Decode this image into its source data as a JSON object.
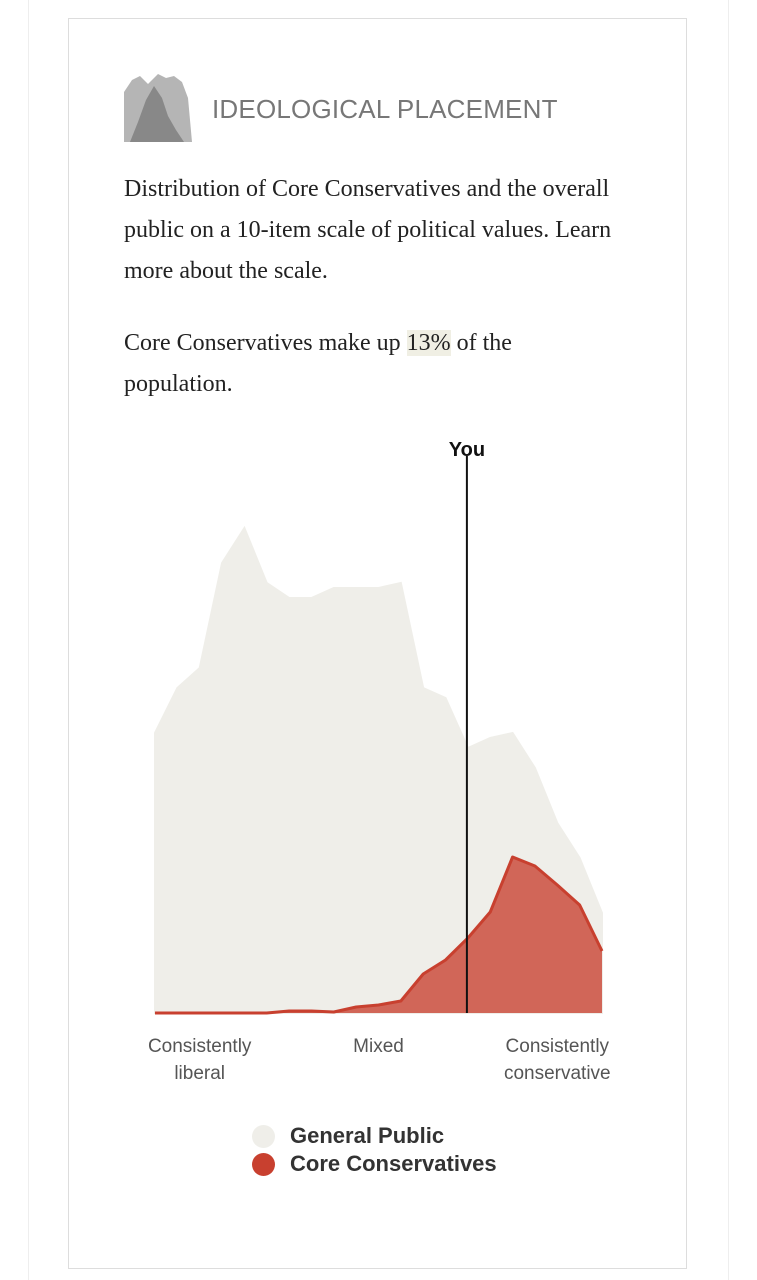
{
  "header": {
    "title": "IDEOLOGICAL PLACEMENT"
  },
  "description": "Distribution of Core Conservatives and the overall public on a 10-item scale of political values. Learn more about the scale.",
  "share": {
    "before": "Core Conservatives make up",
    "value": "13%",
    "after": "of the population."
  },
  "chart_data": {
    "type": "area",
    "categories": [
      null,
      null,
      "Consistently liberal",
      null,
      null,
      null,
      null,
      null,
      null,
      null,
      "Mixed",
      null,
      null,
      null,
      null,
      null,
      null,
      null,
      "Consistently conservative",
      null,
      null
    ],
    "ylim": [
      0,
      10
    ],
    "marker": {
      "label": "You",
      "index": 14
    },
    "series": [
      {
        "name": "General Public",
        "color": "#efeee9",
        "values": [
          5.6,
          6.5,
          6.9,
          9.0,
          9.7,
          8.6,
          8.3,
          8.3,
          8.5,
          8.5,
          8.5,
          8.6,
          6.5,
          6.3,
          5.3,
          5.5,
          5.6,
          4.9,
          3.8,
          3.1,
          2.0
        ]
      },
      {
        "name": "Core Conservatives",
        "color": "#c8402f",
        "values": [
          0,
          0,
          0,
          0,
          0,
          0,
          0.04,
          0.04,
          0.02,
          0.12,
          0.16,
          0.24,
          0.78,
          1.06,
          1.5,
          2.02,
          3.12,
          2.94,
          2.56,
          2.16,
          1.24
        ]
      }
    ]
  }
}
